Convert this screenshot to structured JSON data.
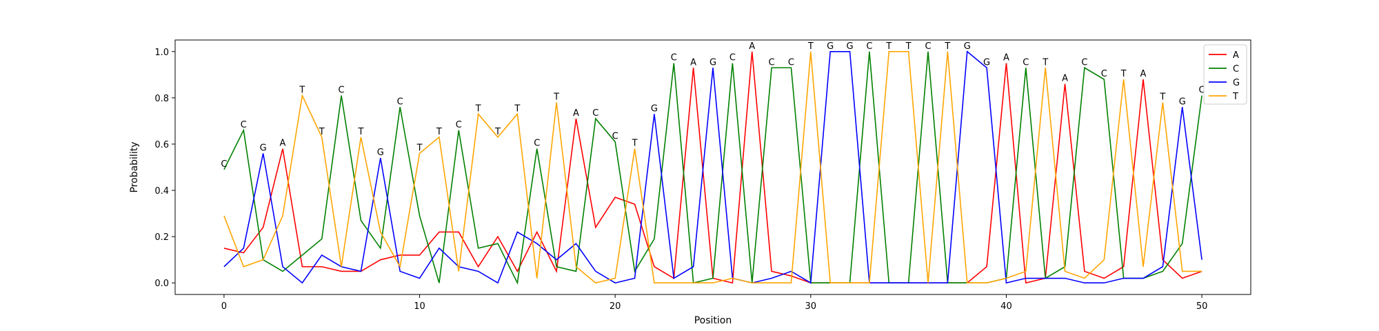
{
  "chart_data": {
    "type": "line",
    "xlabel": "Position",
    "ylabel": "Probability",
    "xlim": [
      -2.5,
      52.5
    ],
    "ylim": [
      -0.05,
      1.05
    ],
    "xticks": [
      0,
      10,
      20,
      30,
      40,
      50
    ],
    "yticks": [
      0.0,
      0.2,
      0.4,
      0.6,
      0.8,
      1.0
    ],
    "xtick_labels": [
      "0",
      "10",
      "20",
      "30",
      "40",
      "50"
    ],
    "ytick_labels": [
      "0.0",
      "0.2",
      "0.4",
      "0.6",
      "0.8",
      "1.0"
    ],
    "grid": false,
    "legend_position": "top-right",
    "x": [
      0,
      1,
      2,
      3,
      4,
      5,
      6,
      7,
      8,
      9,
      10,
      11,
      12,
      13,
      14,
      15,
      16,
      17,
      18,
      19,
      20,
      21,
      22,
      23,
      24,
      25,
      26,
      27,
      28,
      29,
      30,
      31,
      32,
      33,
      34,
      35,
      36,
      37,
      38,
      39,
      40,
      41,
      42,
      43,
      44,
      45,
      46,
      47,
      48,
      49,
      50
    ],
    "series": [
      {
        "name": "A",
        "color": "#ff0000",
        "values": [
          0.15,
          0.13,
          0.24,
          0.58,
          0.07,
          0.07,
          0.05,
          0.05,
          0.1,
          0.12,
          0.12,
          0.22,
          0.22,
          0.07,
          0.2,
          0.05,
          0.22,
          0.05,
          0.71,
          0.24,
          0.37,
          0.34,
          0.07,
          0.02,
          0.93,
          0.02,
          0.0,
          1.0,
          0.05,
          0.03,
          0.0,
          0.0,
          0.0,
          0.0,
          0.0,
          0.0,
          0.0,
          0.0,
          0.0,
          0.07,
          0.95,
          0.0,
          0.02,
          0.86,
          0.05,
          0.02,
          0.07,
          0.88,
          0.1,
          0.02,
          0.05
        ]
      },
      {
        "name": "C",
        "color": "#008000",
        "values": [
          0.49,
          0.66,
          0.1,
          0.05,
          0.12,
          0.19,
          0.81,
          0.27,
          0.15,
          0.76,
          0.29,
          0.0,
          0.66,
          0.15,
          0.17,
          0.0,
          0.58,
          0.07,
          0.05,
          0.71,
          0.61,
          0.05,
          0.19,
          0.95,
          0.0,
          0.02,
          0.95,
          0.0,
          0.93,
          0.93,
          0.0,
          0.0,
          0.0,
          1.0,
          0.0,
          0.0,
          1.0,
          0.0,
          0.0,
          0.0,
          0.02,
          0.93,
          0.02,
          0.07,
          0.93,
          0.88,
          0.02,
          0.02,
          0.05,
          0.17,
          0.81
        ]
      },
      {
        "name": "G",
        "color": "#0000ff",
        "values": [
          0.07,
          0.15,
          0.56,
          0.07,
          0.0,
          0.12,
          0.07,
          0.05,
          0.54,
          0.05,
          0.02,
          0.15,
          0.07,
          0.05,
          0.0,
          0.22,
          0.17,
          0.1,
          0.17,
          0.05,
          0.0,
          0.02,
          0.73,
          0.02,
          0.07,
          0.93,
          0.02,
          0.0,
          0.02,
          0.05,
          0.0,
          1.0,
          1.0,
          0.0,
          0.0,
          0.0,
          0.0,
          0.0,
          1.0,
          0.93,
          0.0,
          0.02,
          0.02,
          0.02,
          0.0,
          0.0,
          0.02,
          0.02,
          0.07,
          0.76,
          0.1
        ]
      },
      {
        "name": "T",
        "color": "#ffa500",
        "values": [
          0.29,
          0.07,
          0.1,
          0.29,
          0.81,
          0.63,
          0.07,
          0.63,
          0.22,
          0.07,
          0.56,
          0.63,
          0.05,
          0.73,
          0.63,
          0.73,
          0.02,
          0.78,
          0.07,
          0.0,
          0.02,
          0.58,
          0.0,
          0.0,
          0.0,
          0.0,
          0.02,
          0.0,
          0.0,
          0.0,
          1.0,
          0.0,
          0.0,
          0.0,
          1.0,
          1.0,
          0.0,
          1.0,
          0.0,
          0.0,
          0.02,
          0.05,
          0.93,
          0.05,
          0.02,
          0.1,
          0.88,
          0.07,
          0.78,
          0.05,
          0.05
        ]
      }
    ],
    "peak_letters": [
      "C",
      "C",
      "G",
      "A",
      "T",
      "T",
      "C",
      "T",
      "G",
      "C",
      "T",
      "T",
      "C",
      "T",
      "T",
      "T",
      "C",
      "T",
      "A",
      "C",
      "C",
      "T",
      "G",
      "C",
      "A",
      "G",
      "C",
      "A",
      "C",
      "C",
      "T",
      "G",
      "G",
      "C",
      "T",
      "T",
      "C",
      "T",
      "G",
      "G",
      "A",
      "C",
      "T",
      "A",
      "C",
      "C",
      "T",
      "A",
      "T",
      "G",
      "C"
    ],
    "peak_values": [
      0.49,
      0.66,
      0.56,
      0.58,
      0.81,
      0.63,
      0.81,
      0.63,
      0.54,
      0.76,
      0.56,
      0.63,
      0.66,
      0.73,
      0.63,
      0.73,
      0.58,
      0.78,
      0.71,
      0.71,
      0.61,
      0.58,
      0.73,
      0.95,
      0.93,
      0.93,
      0.95,
      1.0,
      0.93,
      0.93,
      1.0,
      1.0,
      1.0,
      1.0,
      1.0,
      1.0,
      1.0,
      1.0,
      1.0,
      0.93,
      0.95,
      0.93,
      0.93,
      0.86,
      0.93,
      0.88,
      0.88,
      0.88,
      0.78,
      0.76,
      0.81
    ]
  }
}
